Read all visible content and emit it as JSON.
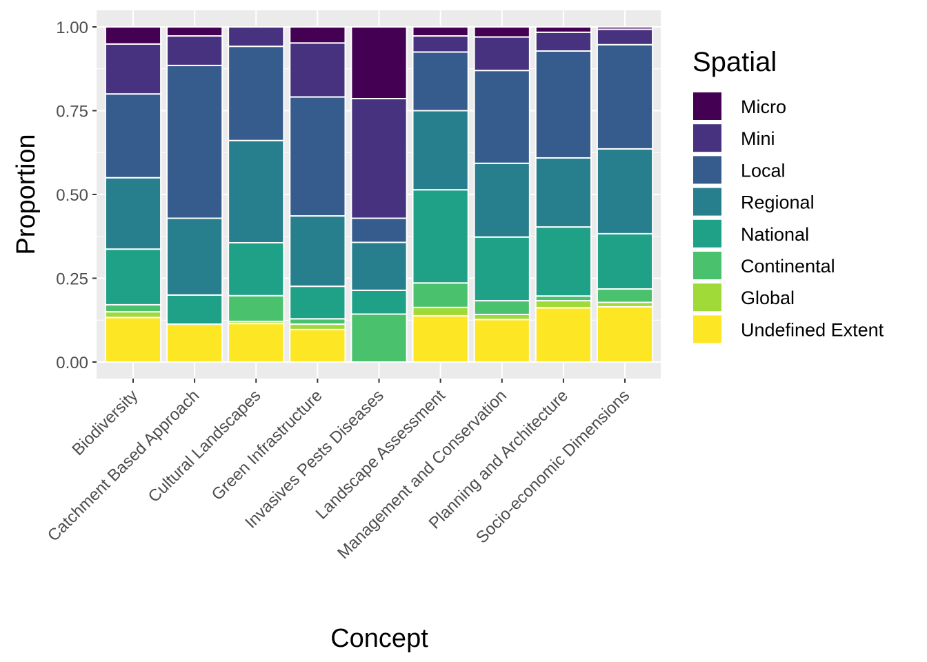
{
  "chart_data": {
    "type": "bar",
    "stacked": true,
    "xlabel": "Concept",
    "ylabel": "Proportion",
    "ylim": [
      0,
      1
    ],
    "yticks": [
      "0.00",
      "0.25",
      "0.50",
      "0.75",
      "1.00"
    ],
    "ytick_values": [
      0,
      0.25,
      0.5,
      0.75,
      1.0
    ],
    "grid": true,
    "legend_title": "Spatial",
    "legend_position": "right",
    "categories": [
      "Biodiversity",
      "Catchment Based Approach",
      "Cultural Landscapes",
      "Green Infrastructure",
      "Invasives Pests Diseases",
      "Landscape Assessment",
      "Management and Conservation",
      "Planning and Architecture",
      "Socio-economic Dimensions"
    ],
    "series": [
      {
        "name": "Undefined Extent",
        "color": "#FDE725",
        "values": [
          0.133,
          0.113,
          0.115,
          0.097,
          0.0,
          0.138,
          0.127,
          0.162,
          0.165
        ]
      },
      {
        "name": "Global",
        "color": "#A0DA39",
        "values": [
          0.017,
          0.0,
          0.006,
          0.016,
          0.0,
          0.025,
          0.015,
          0.021,
          0.013
        ]
      },
      {
        "name": "Continental",
        "color": "#4AC16D",
        "values": [
          0.021,
          0.0,
          0.077,
          0.016,
          0.143,
          0.073,
          0.041,
          0.014,
          0.04
        ]
      },
      {
        "name": "National",
        "color": "#1FA187",
        "values": [
          0.166,
          0.087,
          0.158,
          0.097,
          0.071,
          0.278,
          0.19,
          0.206,
          0.165
        ]
      },
      {
        "name": "Regional",
        "color": "#277F8E",
        "values": [
          0.213,
          0.229,
          0.305,
          0.21,
          0.143,
          0.236,
          0.22,
          0.206,
          0.253
        ]
      },
      {
        "name": "Local",
        "color": "#365C8D",
        "values": [
          0.25,
          0.456,
          0.281,
          0.355,
          0.072,
          0.175,
          0.277,
          0.319,
          0.311
        ]
      },
      {
        "name": "Mini",
        "color": "#46327E",
        "values": [
          0.149,
          0.088,
          0.058,
          0.161,
          0.357,
          0.048,
          0.1,
          0.056,
          0.046
        ]
      },
      {
        "name": "Micro",
        "color": "#440154",
        "values": [
          0.051,
          0.027,
          0.0,
          0.048,
          0.214,
          0.027,
          0.03,
          0.016,
          0.007
        ]
      }
    ]
  }
}
